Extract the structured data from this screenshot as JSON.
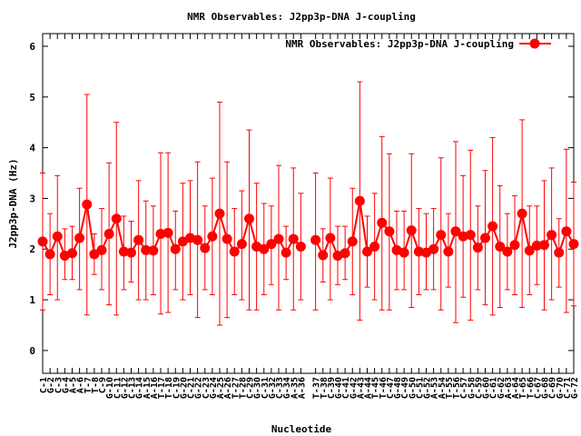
{
  "chart_data": {
    "type": "line",
    "title": "NMR Observables: J2pp3p-DNA J-coupling",
    "xlabel": "Nucleotide",
    "ylabel": "J2pp3p-DNA (Hz)",
    "ylim": [
      -0.45,
      6.25
    ],
    "yticks": [
      0,
      1,
      2,
      3,
      4,
      5,
      6
    ],
    "grid": false,
    "legend_position": "top-right",
    "color": "#ff0000",
    "series": [
      {
        "name": "NMR Observables: J2pp3p-DNA J-coupling",
        "points": [
          {
            "label": "C-1",
            "x": 1,
            "y": 2.15,
            "err_low": 0.8,
            "err_high": 3.5
          },
          {
            "label": "G-2",
            "x": 2,
            "y": 1.9,
            "err_low": 1.1,
            "err_high": 2.7
          },
          {
            "label": "C-3",
            "x": 3,
            "y": 2.25,
            "err_low": 1.0,
            "err_high": 3.45
          },
          {
            "label": "G-4",
            "x": 4,
            "y": 1.87,
            "err_low": 1.4,
            "err_high": 2.4
          },
          {
            "label": "A-5",
            "x": 5,
            "y": 1.92,
            "err_low": 1.4,
            "err_high": 2.45
          },
          {
            "label": "A-6",
            "x": 6,
            "y": 2.22,
            "err_low": 1.2,
            "err_high": 3.2
          },
          {
            "label": "T-7",
            "x": 7,
            "y": 2.88,
            "err_low": 0.7,
            "err_high": 5.05
          },
          {
            "label": "T-8",
            "x": 8,
            "y": 1.9,
            "err_low": 1.5,
            "err_high": 2.3
          },
          {
            "label": "C-9",
            "x": 9,
            "y": 1.98,
            "err_low": 1.2,
            "err_high": 2.8
          },
          {
            "label": "G-10",
            "x": 10,
            "y": 2.3,
            "err_low": 0.9,
            "err_high": 3.7
          },
          {
            "label": "C-11",
            "x": 11,
            "y": 2.6,
            "err_low": 0.7,
            "err_high": 4.5
          },
          {
            "label": "G-12",
            "x": 12,
            "y": 1.95,
            "err_low": 1.2,
            "err_high": 2.65
          },
          {
            "label": "C-13",
            "x": 13,
            "y": 1.93,
            "err_low": 1.35,
            "err_high": 2.55
          },
          {
            "label": "G-14",
            "x": 14,
            "y": 2.18,
            "err_low": 1.0,
            "err_high": 3.35
          },
          {
            "label": "A-15",
            "x": 15,
            "y": 1.98,
            "err_low": 1.0,
            "err_high": 2.95
          },
          {
            "label": "A-16",
            "x": 16,
            "y": 1.97,
            "err_low": 1.1,
            "err_high": 2.85
          },
          {
            "label": "T-17",
            "x": 17,
            "y": 2.3,
            "err_low": 0.72,
            "err_high": 3.9
          },
          {
            "label": "T-18",
            "x": 18,
            "y": 2.32,
            "err_low": 0.75,
            "err_high": 3.9
          },
          {
            "label": "C-19",
            "x": 19,
            "y": 2.0,
            "err_low": 1.2,
            "err_high": 2.75
          },
          {
            "label": "G-20",
            "x": 20,
            "y": 2.15,
            "err_low": 1.0,
            "err_high": 3.3
          },
          {
            "label": "C-21",
            "x": 21,
            "y": 2.22,
            "err_low": 1.1,
            "err_high": 3.35
          },
          {
            "label": "G-22",
            "x": 22,
            "y": 2.18,
            "err_low": 0.65,
            "err_high": 3.72
          },
          {
            "label": "C-23",
            "x": 23,
            "y": 2.02,
            "err_low": 1.2,
            "err_high": 2.85
          },
          {
            "label": "G-24",
            "x": 24,
            "y": 2.25,
            "err_low": 1.1,
            "err_high": 3.4
          },
          {
            "label": "A-25",
            "x": 25,
            "y": 2.7,
            "err_low": 0.5,
            "err_high": 4.9
          },
          {
            "label": "A-26",
            "x": 26,
            "y": 2.2,
            "err_low": 0.65,
            "err_high": 3.72
          },
          {
            "label": "T-27",
            "x": 27,
            "y": 1.95,
            "err_low": 1.1,
            "err_high": 2.8
          },
          {
            "label": "T-28",
            "x": 28,
            "y": 2.1,
            "err_low": 1.0,
            "err_high": 3.15
          },
          {
            "label": "C-29",
            "x": 29,
            "y": 2.6,
            "err_low": 0.8,
            "err_high": 4.35
          },
          {
            "label": "G-30",
            "x": 30,
            "y": 2.05,
            "err_low": 0.8,
            "err_high": 3.3
          },
          {
            "label": "C-31",
            "x": 31,
            "y": 2.0,
            "err_low": 1.1,
            "err_high": 2.9
          },
          {
            "label": "G-32",
            "x": 32,
            "y": 2.1,
            "err_low": 1.3,
            "err_high": 2.85
          },
          {
            "label": "C-33",
            "x": 33,
            "y": 2.2,
            "err_low": 0.8,
            "err_high": 3.65
          },
          {
            "label": "G-34",
            "x": 34,
            "y": 1.93,
            "err_low": 1.4,
            "err_high": 2.45
          },
          {
            "label": "A-35",
            "x": 35,
            "y": 2.2,
            "err_low": 0.8,
            "err_high": 3.6
          },
          {
            "label": "A-36",
            "x": 36,
            "y": 2.05,
            "err_low": 1.0,
            "err_high": 3.1
          },
          {
            "label": "T-37",
            "x": 38,
            "y": 2.18,
            "err_low": 0.8,
            "err_high": 3.5
          },
          {
            "label": "T-38",
            "x": 39,
            "y": 1.88,
            "err_low": 1.35,
            "err_high": 2.4
          },
          {
            "label": "C-39",
            "x": 40,
            "y": 2.22,
            "err_low": 1.0,
            "err_high": 3.4
          },
          {
            "label": "G-40",
            "x": 41,
            "y": 1.87,
            "err_low": 1.3,
            "err_high": 2.45
          },
          {
            "label": "C-41",
            "x": 42,
            "y": 1.92,
            "err_low": 1.4,
            "err_high": 2.45
          },
          {
            "label": "G-42",
            "x": 43,
            "y": 2.15,
            "err_low": 1.1,
            "err_high": 3.2
          },
          {
            "label": "A-43",
            "x": 44,
            "y": 2.95,
            "err_low": 0.6,
            "err_high": 5.3
          },
          {
            "label": "A-44",
            "x": 45,
            "y": 1.95,
            "err_low": 1.25,
            "err_high": 2.65
          },
          {
            "label": "T-45",
            "x": 46,
            "y": 2.05,
            "err_low": 1.0,
            "err_high": 3.1
          },
          {
            "label": "T-46",
            "x": 47,
            "y": 2.52,
            "err_low": 0.8,
            "err_high": 4.22
          },
          {
            "label": "C-47",
            "x": 48,
            "y": 2.35,
            "err_low": 0.8,
            "err_high": 3.88
          },
          {
            "label": "G-48",
            "x": 49,
            "y": 1.98,
            "err_low": 1.2,
            "err_high": 2.75
          },
          {
            "label": "C-49",
            "x": 50,
            "y": 1.93,
            "err_low": 1.2,
            "err_high": 2.75
          },
          {
            "label": "G-50",
            "x": 51,
            "y": 2.37,
            "err_low": 0.85,
            "err_high": 3.88
          },
          {
            "label": "C-51",
            "x": 52,
            "y": 1.95,
            "err_low": 1.1,
            "err_high": 2.8
          },
          {
            "label": "G-52",
            "x": 53,
            "y": 1.93,
            "err_low": 1.2,
            "err_high": 2.7
          },
          {
            "label": "A-53",
            "x": 54,
            "y": 2.0,
            "err_low": 1.2,
            "err_high": 2.8
          },
          {
            "label": "A-54",
            "x": 55,
            "y": 2.28,
            "err_low": 0.8,
            "err_high": 3.8
          },
          {
            "label": "T-55",
            "x": 56,
            "y": 1.95,
            "err_low": 1.25,
            "err_high": 2.7
          },
          {
            "label": "T-56",
            "x": 57,
            "y": 2.35,
            "err_low": 0.55,
            "err_high": 4.12
          },
          {
            "label": "C-57",
            "x": 58,
            "y": 2.25,
            "err_low": 1.05,
            "err_high": 3.45
          },
          {
            "label": "G-58",
            "x": 59,
            "y": 2.28,
            "err_low": 0.6,
            "err_high": 3.95
          },
          {
            "label": "C-59",
            "x": 60,
            "y": 2.03,
            "err_low": 1.2,
            "err_high": 2.85
          },
          {
            "label": "G-60",
            "x": 61,
            "y": 2.22,
            "err_low": 0.9,
            "err_high": 3.55
          },
          {
            "label": "C-61",
            "x": 62,
            "y": 2.45,
            "err_low": 0.7,
            "err_high": 4.2
          },
          {
            "label": "G-62",
            "x": 63,
            "y": 2.05,
            "err_low": 0.85,
            "err_high": 3.25
          },
          {
            "label": "A-63",
            "x": 64,
            "y": 1.95,
            "err_low": 1.2,
            "err_high": 2.7
          },
          {
            "label": "A-64",
            "x": 65,
            "y": 2.08,
            "err_low": 1.1,
            "err_high": 3.05
          },
          {
            "label": "T-65",
            "x": 66,
            "y": 2.7,
            "err_low": 0.85,
            "err_high": 4.55
          },
          {
            "label": "T-66",
            "x": 67,
            "y": 1.97,
            "err_low": 1.1,
            "err_high": 2.85
          },
          {
            "label": "C-67",
            "x": 68,
            "y": 2.07,
            "err_low": 1.3,
            "err_high": 2.85
          },
          {
            "label": "G-68",
            "x": 69,
            "y": 2.08,
            "err_low": 0.8,
            "err_high": 3.35
          },
          {
            "label": "C-69",
            "x": 70,
            "y": 2.28,
            "err_low": 1.0,
            "err_high": 3.6
          },
          {
            "label": "G-70",
            "x": 71,
            "y": 1.93,
            "err_low": 1.25,
            "err_high": 2.6
          },
          {
            "label": "C-71",
            "x": 72,
            "y": 2.35,
            "err_low": 0.75,
            "err_high": 3.97
          },
          {
            "label": "G-72",
            "x": 73,
            "y": 2.1,
            "err_low": 0.88,
            "err_high": 3.32
          }
        ]
      }
    ]
  }
}
